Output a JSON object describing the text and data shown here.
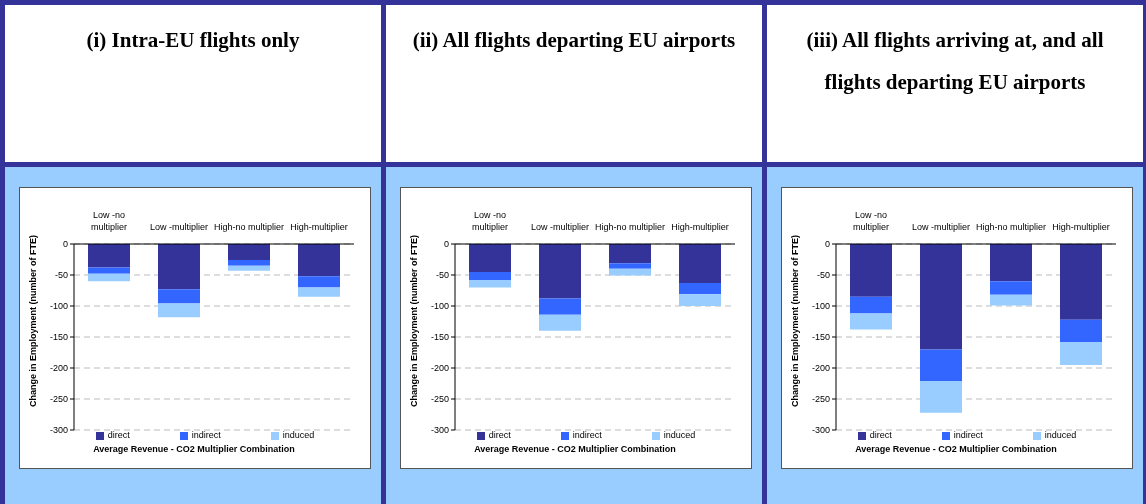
{
  "chart_data": [
    {
      "type": "bar",
      "title": "(i) Intra-EU flights only",
      "categories": [
        "Low -no multiplier",
        "Low -multiplier",
        "High-no multiplier",
        "High-multiplier"
      ],
      "stacked": true,
      "ylabel": "Change in Employment (number of FTE)",
      "xlabel": "Average Revenue - CO2 Multiplier Combination",
      "ylim": [
        -300,
        0
      ],
      "yticks": [
        0,
        -50,
        -100,
        -150,
        -200,
        -250,
        -300
      ],
      "grid": "y",
      "legend": "bottom",
      "series": [
        {
          "name": "direct",
          "color": "#333399",
          "values": [
            -38,
            -73,
            -26,
            -52
          ]
        },
        {
          "name": "indirect",
          "color": "#3366ff",
          "values": [
            -10,
            -23,
            -9,
            -18
          ]
        },
        {
          "name": "induced",
          "color": "#99ccff",
          "values": [
            -12,
            -22,
            -8,
            -15
          ]
        }
      ]
    },
    {
      "type": "bar",
      "title": "(ii) All flights departing EU airports",
      "categories": [
        "Low -no multiplier",
        "Low -multiplier",
        "High-no multiplier",
        "High-multiplier"
      ],
      "stacked": true,
      "ylabel": "Change in Employment (number of FTE)",
      "xlabel": "Average Revenue - CO2 Multiplier Combination",
      "ylim": [
        -300,
        0
      ],
      "yticks": [
        0,
        -50,
        -100,
        -150,
        -200,
        -250,
        -300
      ],
      "grid": "y",
      "legend": "bottom",
      "series": [
        {
          "name": "direct",
          "color": "#333399",
          "values": [
            -45,
            -88,
            -31,
            -63
          ]
        },
        {
          "name": "indirect",
          "color": "#3366ff",
          "values": [
            -13,
            -26,
            -9,
            -18
          ]
        },
        {
          "name": "induced",
          "color": "#99ccff",
          "values": [
            -12,
            -26,
            -11,
            -19
          ]
        }
      ]
    },
    {
      "type": "bar",
      "title": "(iii) All flights arriving at, and all flights departing EU airports",
      "categories": [
        "Low -no multiplier",
        "Low -multiplier",
        "High-no multiplier",
        "High-multiplier"
      ],
      "stacked": true,
      "ylabel": "Change in Employment (number of FTE)",
      "xlabel": "Average Revenue - CO2 Multiplier Combination",
      "ylim": [
        -300,
        0
      ],
      "yticks": [
        0,
        -50,
        -100,
        -150,
        -200,
        -250,
        -300
      ],
      "grid": "y",
      "legend": "bottom",
      "series": [
        {
          "name": "direct",
          "color": "#333399",
          "values": [
            -85,
            -170,
            -60,
            -122
          ]
        },
        {
          "name": "indirect",
          "color": "#3366ff",
          "values": [
            -27,
            -51,
            -22,
            -36
          ]
        },
        {
          "name": "induced",
          "color": "#99ccff",
          "values": [
            -26,
            -51,
            -17,
            -37
          ]
        }
      ]
    }
  ]
}
